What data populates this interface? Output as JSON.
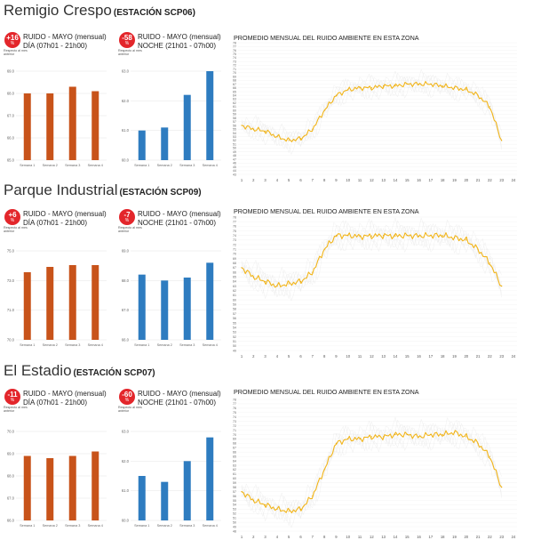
{
  "stations": [
    {
      "name": "Remigio Crespo",
      "code": "(ESTACIÓN SCP06)",
      "day": {
        "badge": "+16",
        "unit": "%",
        "note": "Respecto al mes anterior",
        "line1": "RUIDO - MAYO (mensual)",
        "line2": "DÍA (07h01 - 21h00)",
        "color": "#c8531a",
        "yticks": [
          "69.0",
          "68.0",
          "67.0",
          "66.0",
          "65.0"
        ],
        "ymin": 65,
        "ymax": 69,
        "categories": [
          "Semana 1",
          "Semana 2",
          "Semana 3",
          "Semana 4"
        ],
        "values": [
          68.0,
          68.0,
          68.3,
          68.1
        ]
      },
      "night": {
        "badge": "-58",
        "unit": "%",
        "note": "Respecto al mes anterior",
        "line1": "RUIDO - MAYO (mensual)",
        "line2": "NOCHE (21h01 - 07h00)",
        "color": "#2e7cc0",
        "yticks": [
          "63.0",
          "62.0",
          "61.0",
          "60.0"
        ],
        "ymin": 60,
        "ymax": 63,
        "categories": [
          "Semana 1",
          "Semana 2",
          "Semana 3",
          "Semana 4"
        ],
        "values": [
          61.0,
          61.1,
          62.2,
          63.0
        ]
      },
      "trend": {
        "title": "PROMEDIO MENSUAL DEL RUIDO AMBIENTE EN ESTA ZONA",
        "yticks": [
          "78",
          "77",
          "76",
          "75",
          "74",
          "73",
          "72",
          "71",
          "70",
          "69",
          "68",
          "67",
          "66",
          "65",
          "64",
          "63",
          "62",
          "61",
          "60",
          "59",
          "58",
          "57",
          "56",
          "55",
          "54",
          "53",
          "52",
          "51",
          "50",
          "49",
          "48",
          "47",
          "46",
          "45",
          "44",
          "43"
        ],
        "ymin": 43,
        "ymax": 78,
        "xticks": [
          "1",
          "2",
          "3",
          "4",
          "5",
          "6",
          "7",
          "8",
          "9",
          "10",
          "11",
          "12",
          "13",
          "14",
          "15",
          "16",
          "17",
          "18",
          "19",
          "20",
          "21",
          "22",
          "23",
          "24"
        ],
        "hours": [
          1,
          2,
          3,
          4,
          5,
          6,
          7,
          8,
          9,
          10,
          11,
          12,
          13,
          14,
          15,
          16,
          17,
          18,
          19,
          20,
          21,
          22,
          23
        ],
        "values": [
          56,
          55,
          54.5,
          53,
          52,
          52.5,
          55,
          60,
          64,
          65.5,
          66,
          66,
          66.5,
          66.5,
          67,
          67,
          67,
          66.5,
          66,
          65.5,
          64,
          61,
          52
        ]
      }
    },
    {
      "name": "Parque Industrial",
      "code": "(ESTACIÓN SCP09)",
      "day": {
        "badge": "+6",
        "unit": "%",
        "note": "Respecto al mes anterior",
        "line1": "RUIDO - MAYO (mensual)",
        "line2": "DÍA (07h01 - 21h00)",
        "color": "#c8531a",
        "yticks": [
          "75.0",
          "73.0",
          "71.0",
          "70.0"
        ],
        "ymin": 70,
        "ymax": 75,
        "categories": [
          "Semana 1",
          "Semana 2",
          "Semana 3",
          "Semana 4"
        ],
        "values": [
          73.8,
          74.1,
          74.2,
          74.2
        ]
      },
      "night": {
        "badge": "-7",
        "unit": "%",
        "note": "Respecto al mes anterior",
        "line1": "RUIDO - MAYO (mensual)",
        "line2": "NOCHE (21h01 - 07h00)",
        "color": "#2e7cc0",
        "yticks": [
          "69.0",
          "68.0",
          "67.0",
          "66.0"
        ],
        "ymin": 66,
        "ymax": 69,
        "categories": [
          "Semana 1",
          "Semana 2",
          "Semana 3",
          "Semana 4"
        ],
        "values": [
          68.2,
          68.0,
          68.1,
          68.6
        ]
      },
      "trend": {
        "title": "PROMEDIO MENSUAL DEL RUIDO AMBIENTE EN ESTA ZONA",
        "yticks": [
          "78",
          "77",
          "76",
          "75",
          "74",
          "73",
          "72",
          "71",
          "70",
          "69",
          "68",
          "67",
          "66",
          "65",
          "64",
          "63",
          "62",
          "61",
          "60",
          "59",
          "58",
          "57",
          "56",
          "55",
          "54",
          "53",
          "52",
          "51",
          "50",
          "49"
        ],
        "ymin": 49,
        "ymax": 78,
        "xticks": [
          "1",
          "2",
          "3",
          "4",
          "5",
          "6",
          "7",
          "8",
          "9",
          "10",
          "11",
          "12",
          "13",
          "14",
          "15",
          "16",
          "17",
          "18",
          "19",
          "20",
          "21",
          "22",
          "23",
          "24"
        ],
        "hours": [
          1,
          2,
          3,
          4,
          5,
          6,
          7,
          8,
          9,
          10,
          11,
          12,
          13,
          14,
          15,
          16,
          17,
          18,
          19,
          20,
          21,
          22,
          23
        ],
        "values": [
          67,
          65,
          64,
          63,
          63.5,
          64,
          66,
          71,
          74,
          74,
          73.8,
          73.9,
          74,
          73.9,
          74,
          73.9,
          74,
          74,
          73.5,
          73,
          71,
          68,
          63
        ]
      }
    },
    {
      "name": "El Estadio",
      "code": "(ESTACIÓN SCP07)",
      "day": {
        "badge": "-11",
        "unit": "%",
        "note": "Respecto al mes anterior",
        "line1": "RUIDO - MAYO (mensual)",
        "line2": "DÍA (07h01 - 21h00)",
        "color": "#c8531a",
        "yticks": [
          "70.0",
          "69.0",
          "68.0",
          "67.0",
          "66.0"
        ],
        "ymin": 66,
        "ymax": 70,
        "categories": [
          "Semana 1",
          "Semana 2",
          "Semana 3",
          "Semana 4"
        ],
        "values": [
          68.9,
          68.8,
          68.9,
          69.1
        ]
      },
      "night": {
        "badge": "-60",
        "unit": "%",
        "note": "Respecto al mes anterior",
        "line1": "RUIDO - MAYO (mensual)",
        "line2": "NOCHE (21h01 - 07h00)",
        "color": "#2e7cc0",
        "yticks": [
          "63.0",
          "62.0",
          "61.0",
          "60.0"
        ],
        "ymin": 60,
        "ymax": 63,
        "categories": [
          "Semana 1",
          "Semana 2",
          "Semana 3",
          "Semana 4"
        ],
        "values": [
          61.5,
          61.3,
          62.0,
          62.8
        ]
      },
      "trend": {
        "title": "PROMEDIO MENSUAL DEL RUIDO AMBIENTE EN ESTA ZONA",
        "yticks": [
          "78",
          "77",
          "76",
          "75",
          "74",
          "73",
          "72",
          "71",
          "70",
          "69",
          "68",
          "67",
          "66",
          "65",
          "64",
          "63",
          "62",
          "61",
          "60",
          "59",
          "58",
          "57",
          "56",
          "55",
          "54",
          "53",
          "52",
          "51",
          "50",
          "49",
          "48"
        ],
        "ymin": 48,
        "ymax": 78,
        "xticks": [
          "1",
          "2",
          "3",
          "4",
          "5",
          "6",
          "7",
          "8",
          "9",
          "10",
          "11",
          "12",
          "13",
          "14",
          "15",
          "16",
          "17",
          "18",
          "19",
          "20",
          "21",
          "22",
          "23",
          "24"
        ],
        "hours": [
          1,
          2,
          3,
          4,
          5,
          6,
          7,
          8,
          9,
          10,
          11,
          12,
          13,
          14,
          15,
          16,
          17,
          18,
          19,
          20,
          21,
          22,
          23
        ],
        "values": [
          57,
          55,
          54,
          53,
          52.5,
          53,
          56,
          62,
          68,
          69,
          69,
          69.5,
          69.5,
          70,
          70,
          69.5,
          70,
          70,
          70.5,
          69.5,
          68,
          65,
          58
        ]
      }
    }
  ]
}
